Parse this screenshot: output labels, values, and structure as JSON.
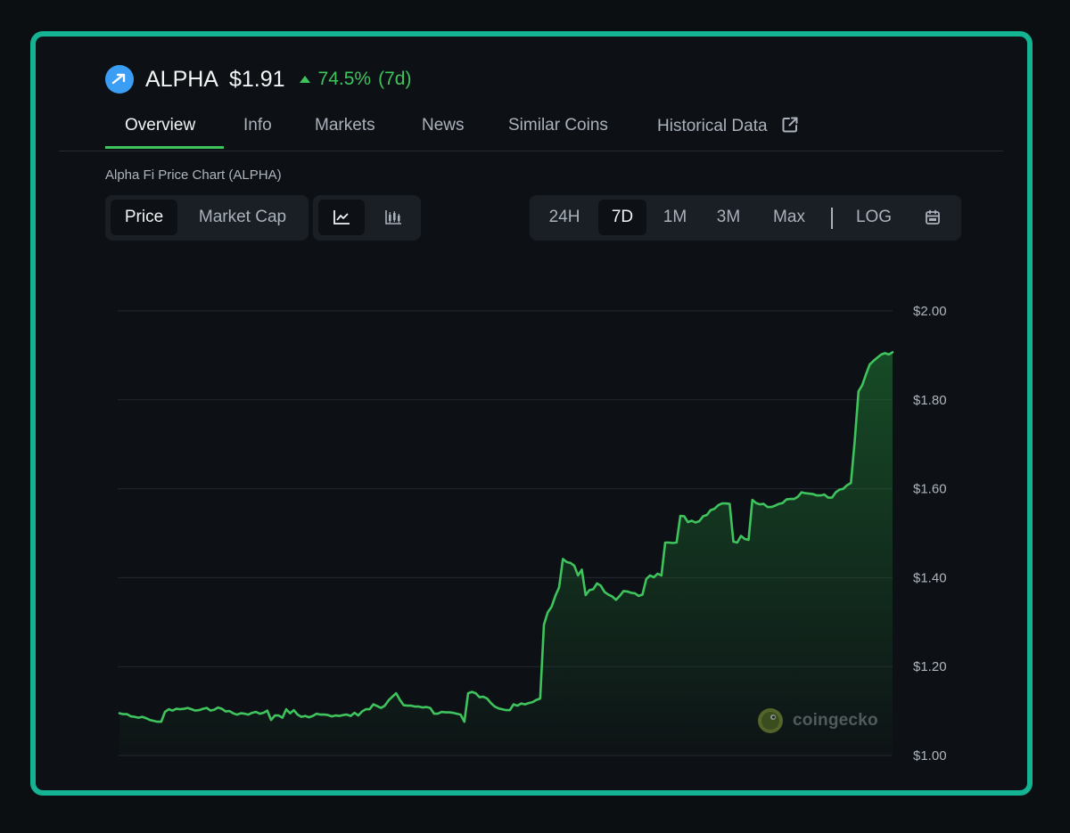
{
  "coin": {
    "symbol": "ALPHA",
    "price": "$1.91",
    "change": "74.5%",
    "change_period": "(7d)",
    "logo_icon": "alpha-arrow-icon",
    "accent_color": "#3fc35d",
    "frame_color": "#14b394"
  },
  "tabs": [
    {
      "label": "Overview",
      "active": true
    },
    {
      "label": "Info"
    },
    {
      "label": "Markets"
    },
    {
      "label": "News"
    },
    {
      "label": "Similar Coins"
    },
    {
      "label": "Historical Data",
      "icon": "external-link-icon"
    }
  ],
  "chart_title": "Alpha Fi Price Chart (ALPHA)",
  "controls": {
    "metric": [
      {
        "label": "Price",
        "active": true
      },
      {
        "label": "Market Cap"
      }
    ],
    "chart_type_icons": [
      "line-chart-icon",
      "candlestick-chart-icon"
    ],
    "ranges": [
      {
        "label": "24H"
      },
      {
        "label": "7D",
        "active": true
      },
      {
        "label": "1M"
      },
      {
        "label": "3M"
      },
      {
        "label": "Max"
      }
    ],
    "log_label": "LOG",
    "calendar_icon": "calendar-icon"
  },
  "watermark": "coingecko",
  "chart_data": {
    "type": "area",
    "title": "",
    "xlabel": "",
    "ylabel": "",
    "ylim": [
      1.0,
      2.0
    ],
    "y_ticks": [
      "$2.00",
      "$1.80",
      "$1.60",
      "$1.40",
      "$1.20",
      "$1.00"
    ],
    "grid": true,
    "line_color": "#3fc35d",
    "series": [
      {
        "values": [
          1.095,
          1.093,
          1.093,
          1.088,
          1.087,
          1.085,
          1.087,
          1.084,
          1.08,
          1.078,
          1.076,
          1.076,
          1.098,
          1.104,
          1.101,
          1.105,
          1.104,
          1.105,
          1.107,
          1.104,
          1.101,
          1.102,
          1.105,
          1.107,
          1.101,
          1.103,
          1.108,
          1.105,
          1.099,
          1.1,
          1.095,
          1.092,
          1.095,
          1.094,
          1.092,
          1.096,
          1.098,
          1.094,
          1.096,
          1.101,
          1.08,
          1.09,
          1.09,
          1.085,
          1.104,
          1.095,
          1.102,
          1.092,
          1.087,
          1.089,
          1.086,
          1.089,
          1.094,
          1.092,
          1.092,
          1.091,
          1.088,
          1.09,
          1.089,
          1.091,
          1.092,
          1.089,
          1.096,
          1.09,
          1.099,
          1.104,
          1.104,
          1.115,
          1.111,
          1.107,
          1.112,
          1.124,
          1.132,
          1.14,
          1.125,
          1.113,
          1.112,
          1.112,
          1.11,
          1.11,
          1.108,
          1.109,
          1.107,
          1.094,
          1.094,
          1.098,
          1.097,
          1.097,
          1.096,
          1.094,
          1.092,
          1.076,
          1.14,
          1.143,
          1.14,
          1.131,
          1.132,
          1.128,
          1.118,
          1.11,
          1.106,
          1.104,
          1.102,
          1.102,
          1.115,
          1.112,
          1.117,
          1.115,
          1.118,
          1.12,
          1.125,
          1.128,
          1.294,
          1.322,
          1.334,
          1.359,
          1.378,
          1.442,
          1.435,
          1.433,
          1.427,
          1.405,
          1.418,
          1.361,
          1.372,
          1.374,
          1.387,
          1.382,
          1.368,
          1.362,
          1.358,
          1.35,
          1.359,
          1.37,
          1.369,
          1.366,
          1.365,
          1.359,
          1.362,
          1.397,
          1.405,
          1.401,
          1.409,
          1.405,
          1.479,
          1.479,
          1.478,
          1.479,
          1.539,
          1.538,
          1.525,
          1.528,
          1.524,
          1.527,
          1.538,
          1.541,
          1.552,
          1.555,
          1.563,
          1.567,
          1.567,
          1.566,
          1.481,
          1.479,
          1.494,
          1.487,
          1.485,
          1.575,
          1.568,
          1.565,
          1.566,
          1.559,
          1.559,
          1.562,
          1.566,
          1.568,
          1.576,
          1.577,
          1.577,
          1.582,
          1.592,
          1.59,
          1.589,
          1.588,
          1.585,
          1.585,
          1.587,
          1.58,
          1.58,
          1.592,
          1.598,
          1.6,
          1.608,
          1.613,
          1.706,
          1.819,
          1.833,
          1.858,
          1.88,
          1.888,
          1.895,
          1.902,
          1.905,
          1.902,
          1.907
        ]
      }
    ]
  }
}
